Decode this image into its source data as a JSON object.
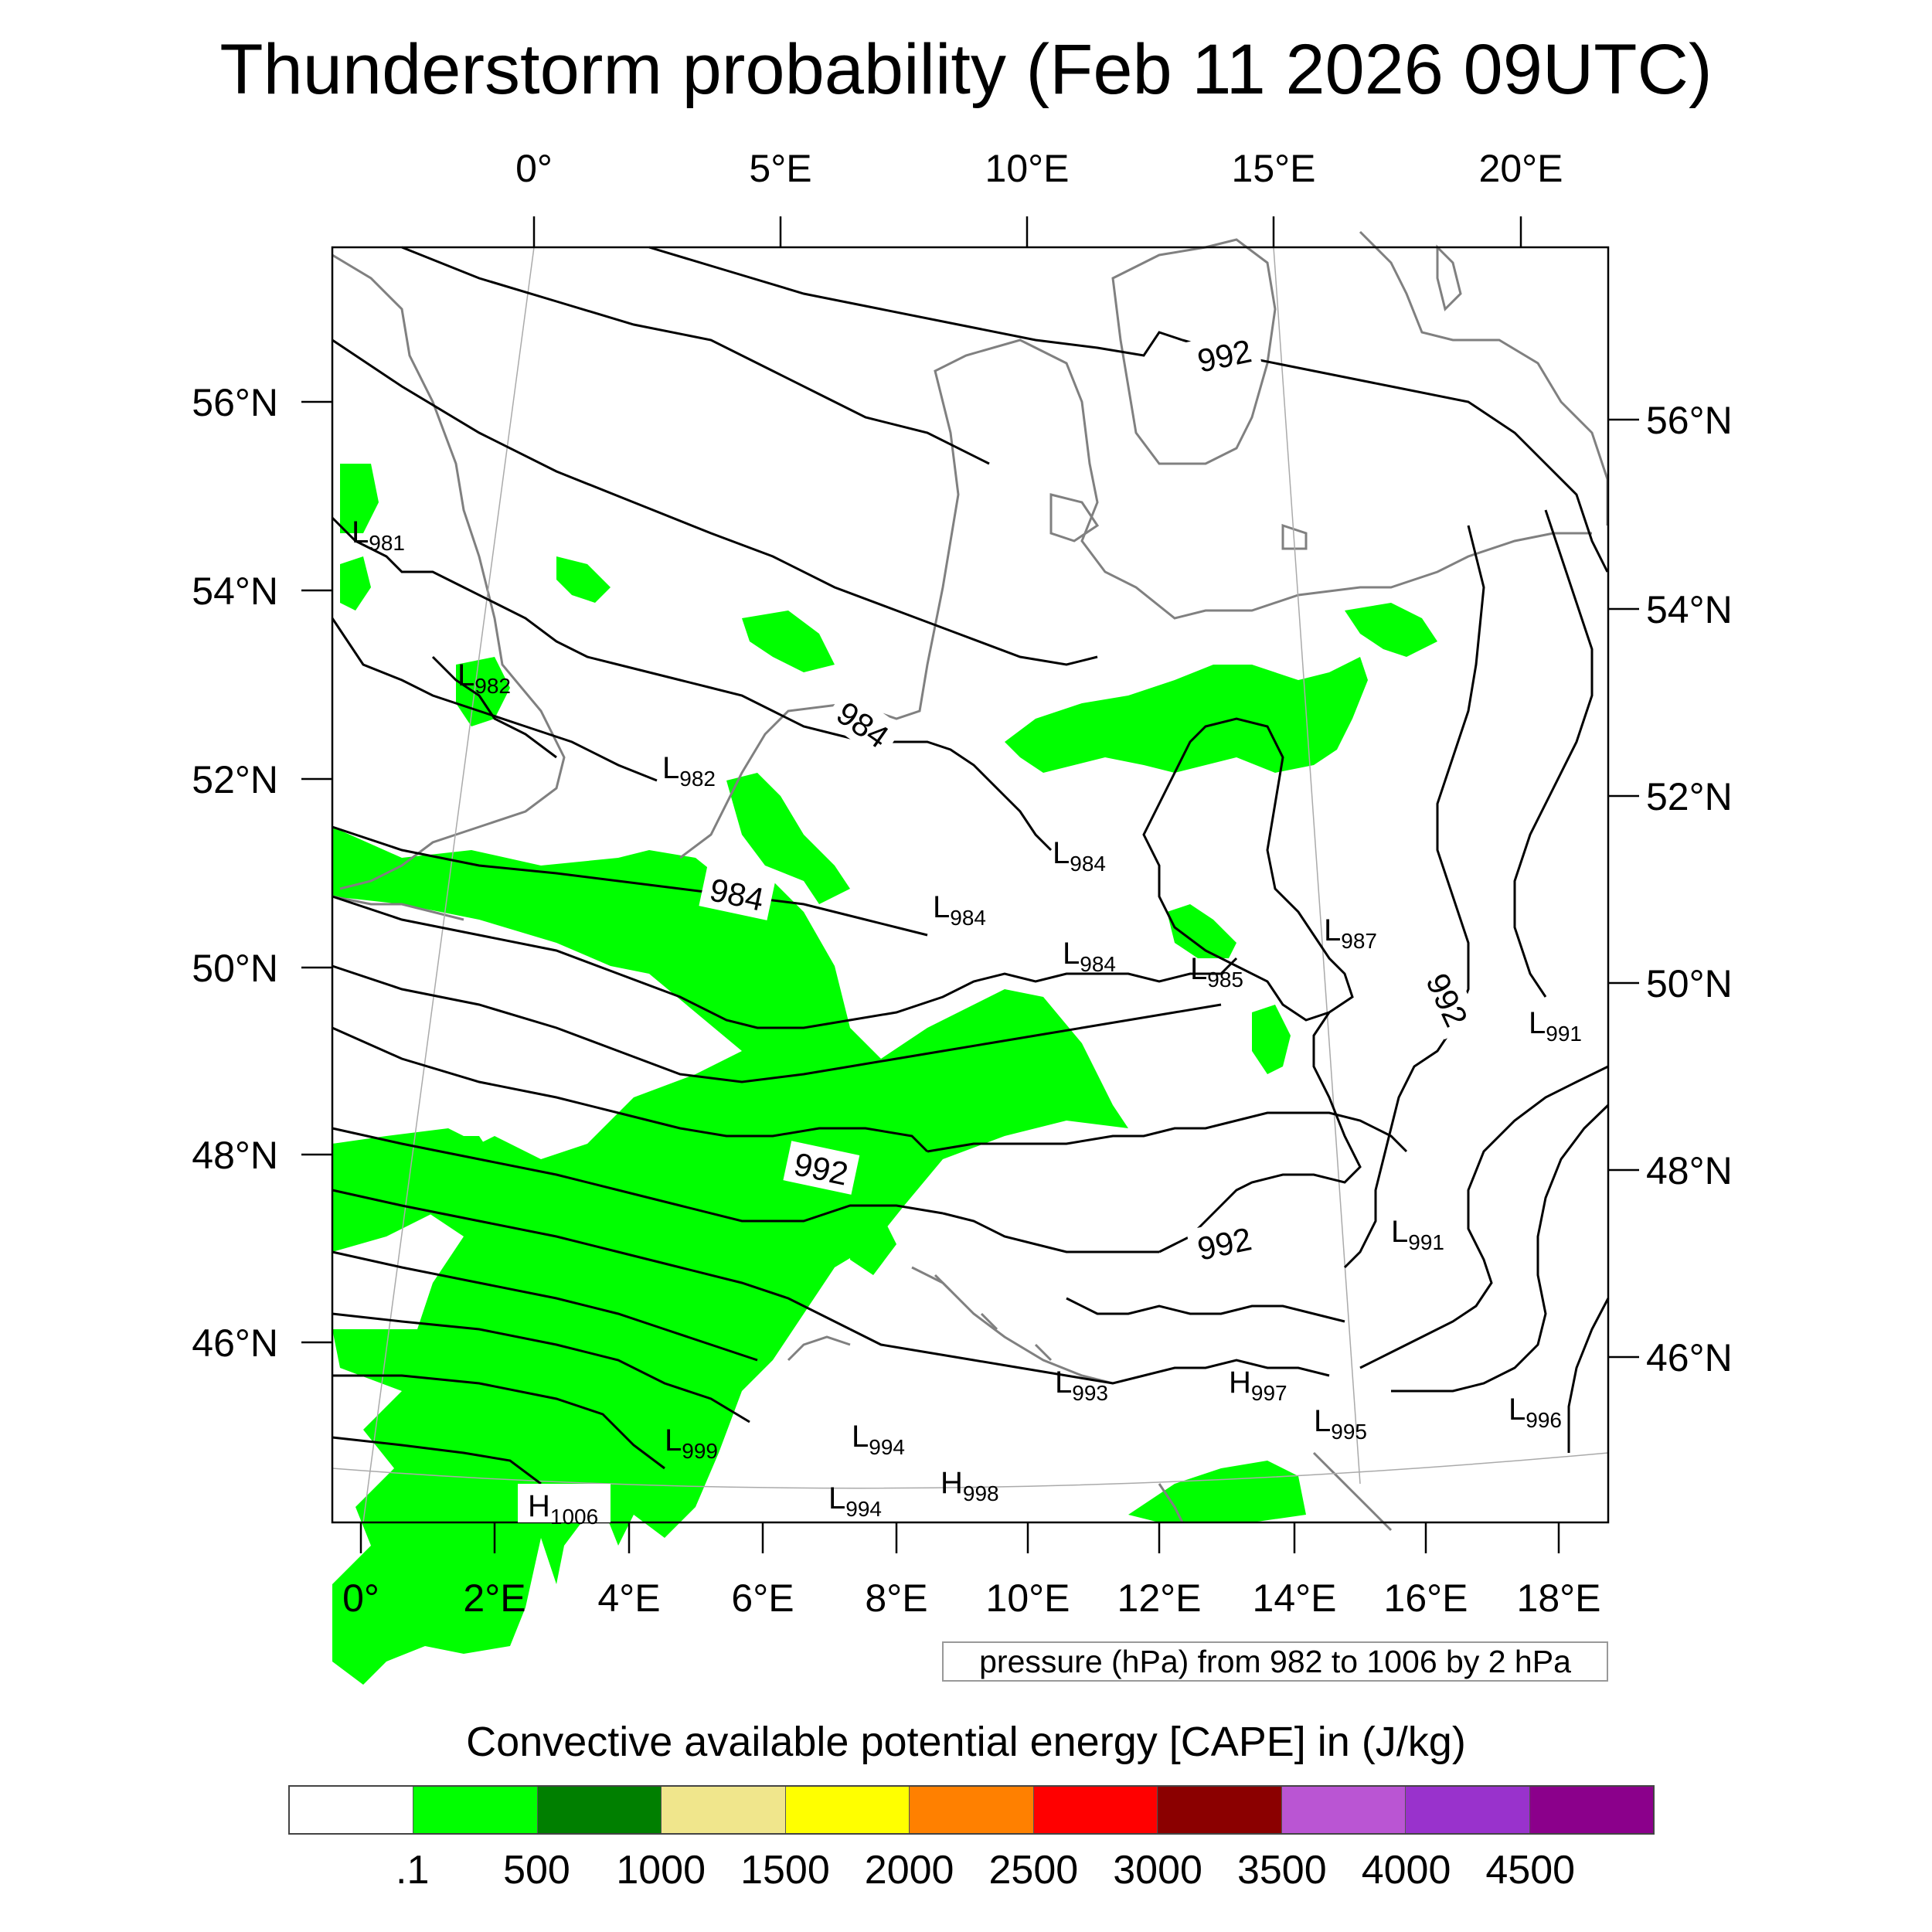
{
  "title": "Thunderstorm probability (Feb 11 2026 09UTC)",
  "top_lon_labels": [
    "0°",
    "5°E",
    "10°E",
    "15°E",
    "20°E"
  ],
  "bottom_lon_labels": [
    "0°",
    "2°E",
    "4°E",
    "6°E",
    "8°E",
    "10°E",
    "12°E",
    "14°E",
    "16°E",
    "18°E"
  ],
  "left_lat_labels": [
    "56°N",
    "54°N",
    "52°N",
    "50°N",
    "48°N",
    "46°N"
  ],
  "right_lat_labels": [
    "56°N",
    "54°N",
    "52°N",
    "50°N",
    "48°N",
    "46°N"
  ],
  "isobar_labels": [
    "992",
    "984",
    "984",
    "992",
    "992",
    "992"
  ],
  "pressure_centers": [
    {
      "type": "L",
      "value": "981"
    },
    {
      "type": "L",
      "value": "982"
    },
    {
      "type": "L",
      "value": "982"
    },
    {
      "type": "L",
      "value": "984"
    },
    {
      "type": "L",
      "value": "984"
    },
    {
      "type": "L",
      "value": "984"
    },
    {
      "type": "L",
      "value": "985"
    },
    {
      "type": "L",
      "value": "987"
    },
    {
      "type": "L",
      "value": "991"
    },
    {
      "type": "L",
      "value": "991"
    },
    {
      "type": "L",
      "value": "993"
    },
    {
      "type": "H",
      "value": "997"
    },
    {
      "type": "L",
      "value": "995"
    },
    {
      "type": "L",
      "value": "996"
    },
    {
      "type": "L",
      "value": "999"
    },
    {
      "type": "L",
      "value": "994"
    },
    {
      "type": "L",
      "value": "994"
    },
    {
      "type": "H",
      "value": "998"
    },
    {
      "type": "H",
      "value": "1006"
    }
  ],
  "pressure_note": "pressure (hPa) from 982 to 1006 by 2 hPa",
  "colorbar": {
    "title": "Convective available potential energy [CAPE] in (J/kg)",
    "colors": [
      "#ffffff",
      "#00ff00",
      "#007f00",
      "#f0e68c",
      "#ffff00",
      "#ff8000",
      "#ff0000",
      "#8b0000",
      "#ba55d3",
      "#9932cc",
      "#8b008b"
    ],
    "labels": [
      ".1",
      "500",
      "1000",
      "1500",
      "2000",
      "2500",
      "3000",
      "3500",
      "4000",
      "4500"
    ]
  },
  "colors": {
    "cape_green": "#00ff00",
    "isobar": "#000000",
    "coastline": "#808080"
  }
}
